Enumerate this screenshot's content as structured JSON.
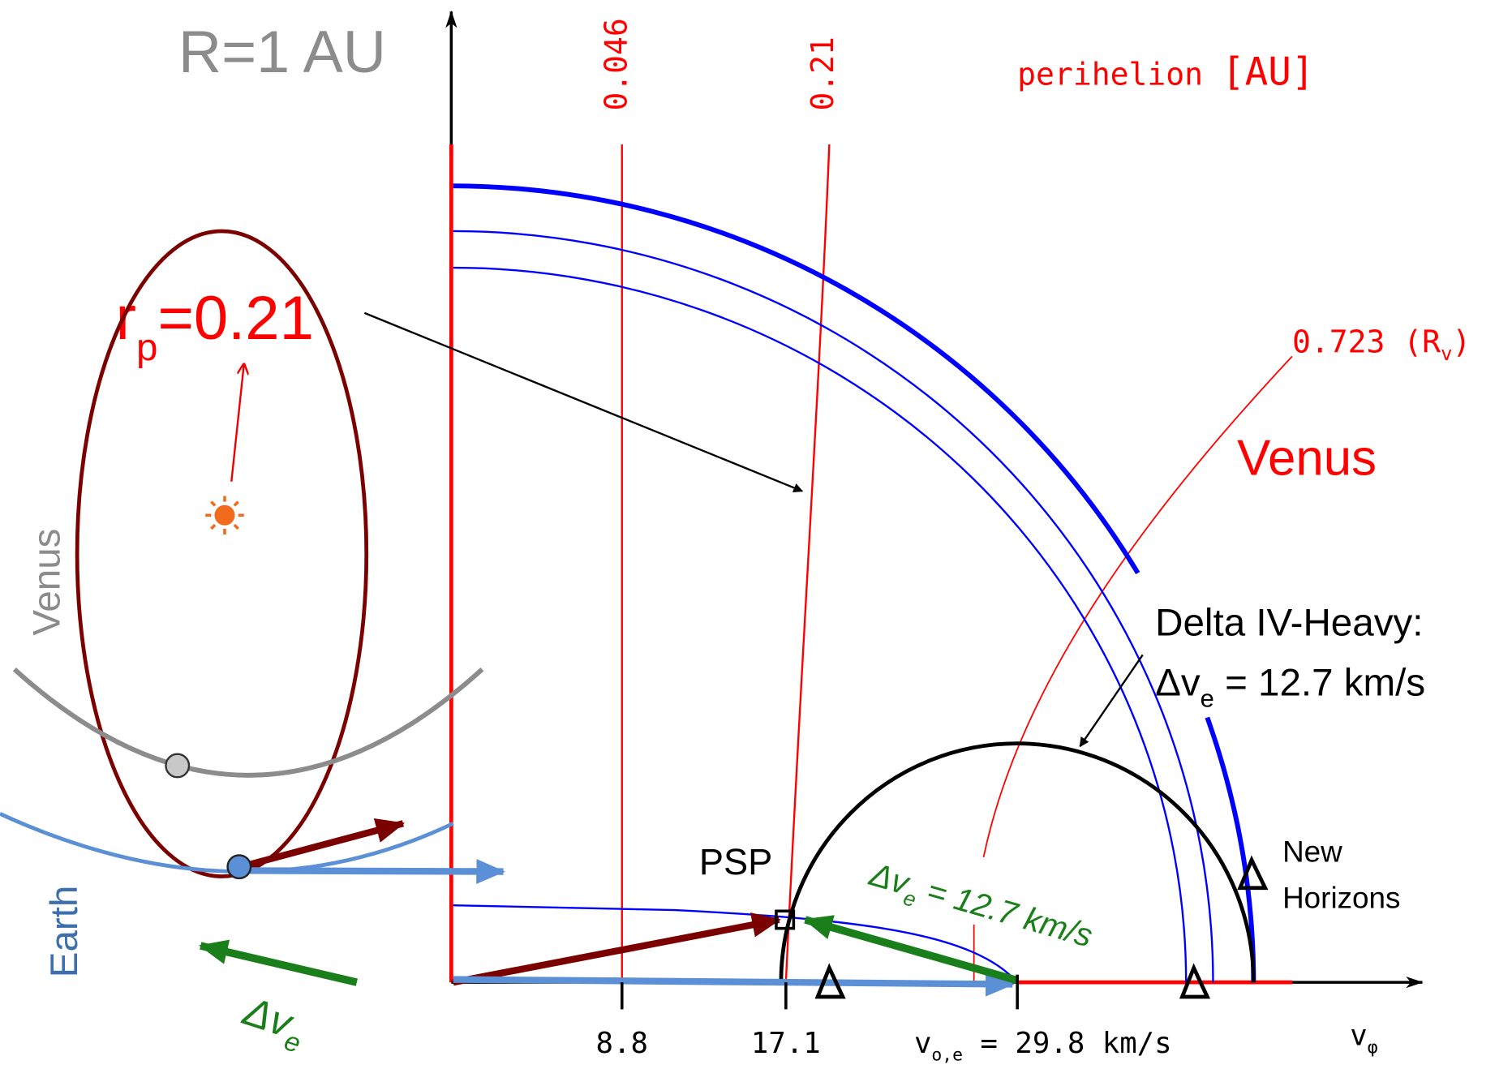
{
  "title": "R=1 AU",
  "perihelion_heading": {
    "text": "perihelion",
    "unit": "[AU]"
  },
  "perihelion_lines": [
    "0.046",
    "0.21"
  ],
  "venus_line": {
    "text": "0.723 (R",
    "sub": "v",
    "close": ")"
  },
  "venus_label": "Venus",
  "rp_label": {
    "base": "r",
    "sub": "p",
    "rest": "=0.21"
  },
  "launcher": {
    "line1": "Delta IV-Heavy:",
    "delta": "Δv",
    "sub": "e",
    "rest": " = 12.7 km/s"
  },
  "new_horizons": [
    "New",
    "Horizons"
  ],
  "psp": "PSP",
  "green_label": {
    "delta": "Δv",
    "sub": "e",
    "rest": " = 12.7 km/s"
  },
  "x_axis": {
    "ticks": [
      "8.8",
      "17.1"
    ],
    "earth_speed": {
      "base": "v",
      "sub": "o,e",
      "rest": " = 29.8 km/s"
    },
    "label": {
      "base": "v",
      "sub": "φ"
    }
  },
  "orbit_sketch": {
    "venus": "Venus",
    "earth": "Earth",
    "delta": {
      "base": "Δv",
      "sub": "e"
    }
  }
}
